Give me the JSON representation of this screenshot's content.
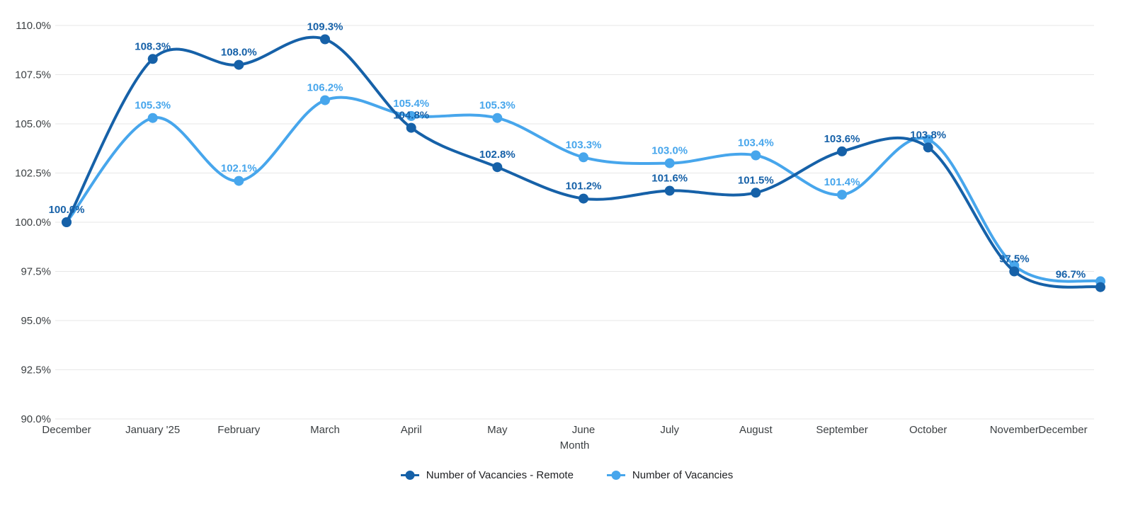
{
  "chart_data": {
    "type": "line",
    "title": "",
    "x": {
      "label": "Month",
      "categories": [
        "December",
        "January '25",
        "February",
        "March",
        "April",
        "May",
        "June",
        "July",
        "August",
        "September",
        "October",
        "November",
        "December"
      ]
    },
    "y": {
      "label": "",
      "unit": "%",
      "min": 90,
      "max": 110,
      "step": 2.5,
      "tick_labels": [
        "110.0%",
        "107.5%",
        "105.0%",
        "102.5%",
        "100.0%",
        "97.5%",
        "95.0%",
        "92.5%",
        "90.0%"
      ]
    },
    "grid": true,
    "legend_position": "bottom",
    "line_style": "smooth",
    "series": [
      {
        "name": "Number of Vacancies - Remote",
        "color": "#1661a8",
        "values": [
          100.0,
          108.3,
          108.0,
          109.3,
          104.8,
          102.8,
          101.2,
          101.6,
          101.5,
          103.6,
          103.8,
          97.5,
          96.7
        ],
        "point_labels": [
          "100.0%",
          "108.3%",
          "108.0%",
          "109.3%",
          "104.8%",
          "102.8%",
          "101.2%",
          "101.6%",
          "101.5%",
          "103.6%",
          "103.8%",
          "97.5%",
          "96.7%"
        ]
      },
      {
        "name": "Number of Vacancies",
        "color": "#47a6ec",
        "values": [
          100.0,
          105.3,
          102.1,
          106.2,
          105.4,
          105.3,
          103.3,
          103.0,
          103.4,
          101.4,
          104.2,
          97.8,
          97.0
        ],
        "point_labels": [
          null,
          "105.3%",
          "102.1%",
          "106.2%",
          "105.4%",
          "105.3%",
          "103.3%",
          "103.0%",
          "103.4%",
          "101.4%",
          null,
          null,
          null
        ]
      }
    ]
  },
  "colors": {
    "grid": "#e7e7e7",
    "axis_text": "#3c4043",
    "background": "#ffffff"
  }
}
